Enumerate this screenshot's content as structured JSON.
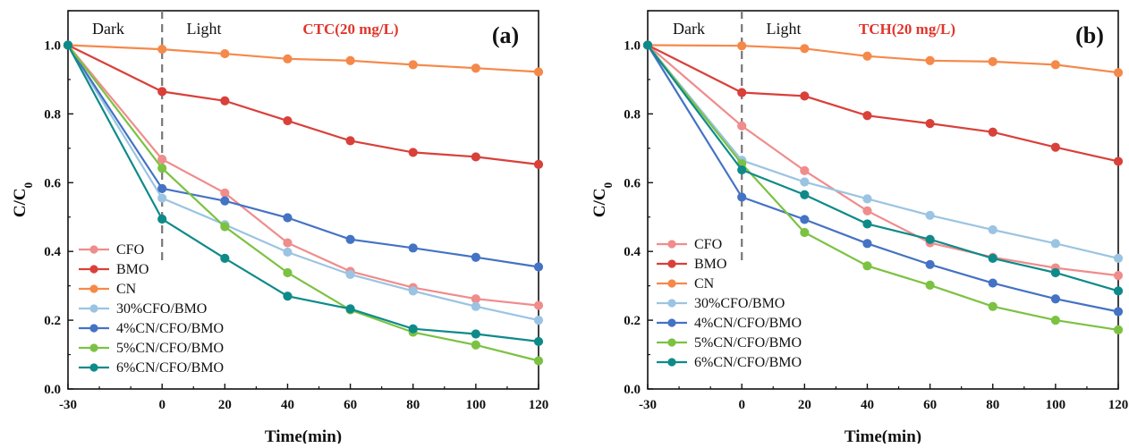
{
  "chart_data": [
    {
      "type": "line",
      "panel_label": "(a)",
      "annotation": "CTC(20 mg/L)",
      "annotation_color": "#e0352b",
      "phase_labels": [
        "Dark",
        "Light"
      ],
      "xlabel": "Time(min)",
      "ylabel": "C/C",
      "ylabel_sub": "0",
      "xlim": [
        -30,
        120
      ],
      "ylim": [
        0.0,
        1.1
      ],
      "x_ticks": [
        "-30",
        "0",
        "20",
        "40",
        "60",
        "80",
        "100",
        "120"
      ],
      "y_ticks": [
        "0.0",
        "0.2",
        "0.4",
        "0.6",
        "0.8",
        "1.0"
      ],
      "legend_position": "bottom-left",
      "x": [
        -30,
        0,
        20,
        40,
        60,
        80,
        100,
        120
      ],
      "series": [
        {
          "name": "CFO",
          "color": "#f08c8c",
          "values": [
            1.0,
            0.668,
            0.57,
            0.425,
            0.342,
            0.295,
            0.262,
            0.243
          ]
        },
        {
          "name": "BMO",
          "color": "#d9403a",
          "values": [
            1.0,
            0.865,
            0.838,
            0.78,
            0.722,
            0.688,
            0.675,
            0.653
          ]
        },
        {
          "name": "CN",
          "color": "#f5894a",
          "values": [
            1.0,
            0.988,
            0.975,
            0.96,
            0.955,
            0.943,
            0.933,
            0.922
          ]
        },
        {
          "name": "30%CFO/BMO",
          "color": "#9bc4e2",
          "values": [
            1.0,
            0.555,
            0.478,
            0.398,
            0.333,
            0.285,
            0.24,
            0.2
          ]
        },
        {
          "name": "4%CN/CFO/BMO",
          "color": "#4472c4",
          "values": [
            1.0,
            0.583,
            0.547,
            0.498,
            0.435,
            0.41,
            0.383,
            0.355
          ]
        },
        {
          "name": "5%CN/CFO/BMO",
          "color": "#7cc242",
          "values": [
            1.0,
            0.642,
            0.472,
            0.338,
            0.23,
            0.165,
            0.128,
            0.082
          ]
        },
        {
          "name": "6%CN/CFO/BMO",
          "color": "#0f8a8a",
          "values": [
            1.0,
            0.494,
            0.38,
            0.27,
            0.233,
            0.175,
            0.16,
            0.138
          ]
        }
      ]
    },
    {
      "type": "line",
      "panel_label": "(b)",
      "annotation": "TCH(20 mg/L)",
      "annotation_color": "#e0352b",
      "phase_labels": [
        "Dark",
        "Light"
      ],
      "xlabel": "Time(min)",
      "ylabel": "C/C",
      "ylabel_sub": "0",
      "xlim": [
        -30,
        120
      ],
      "ylim": [
        0.0,
        1.1
      ],
      "x_ticks": [
        "-30",
        "0",
        "20",
        "40",
        "60",
        "80",
        "100",
        "120"
      ],
      "y_ticks": [
        "0.0",
        "0.2",
        "0.4",
        "0.6",
        "0.8",
        "1.0"
      ],
      "legend_position": "bottom-left",
      "x": [
        -30,
        0,
        20,
        40,
        60,
        80,
        100,
        120
      ],
      "series": [
        {
          "name": "CFO",
          "color": "#f08c8c",
          "values": [
            1.0,
            0.765,
            0.635,
            0.518,
            0.425,
            0.383,
            0.352,
            0.33
          ]
        },
        {
          "name": "BMO",
          "color": "#d9403a",
          "values": [
            1.0,
            0.862,
            0.852,
            0.795,
            0.772,
            0.747,
            0.703,
            0.662
          ]
        },
        {
          "name": "CN",
          "color": "#f5894a",
          "values": [
            1.0,
            0.998,
            0.99,
            0.968,
            0.955,
            0.952,
            0.943,
            0.92
          ]
        },
        {
          "name": "30%CFO/BMO",
          "color": "#9bc4e2",
          "values": [
            1.0,
            0.665,
            0.602,
            0.553,
            0.505,
            0.463,
            0.423,
            0.38
          ]
        },
        {
          "name": "4%CN/CFO/BMO",
          "color": "#4472c4",
          "values": [
            1.0,
            0.558,
            0.493,
            0.423,
            0.362,
            0.308,
            0.262,
            0.225
          ]
        },
        {
          "name": "5%CN/CFO/BMO",
          "color": "#7cc242",
          "values": [
            1.0,
            0.655,
            0.455,
            0.358,
            0.302,
            0.24,
            0.2,
            0.172
          ]
        },
        {
          "name": "6%CN/CFO/BMO",
          "color": "#0f8a8a",
          "values": [
            1.0,
            0.637,
            0.565,
            0.48,
            0.435,
            0.38,
            0.338,
            0.285
          ]
        }
      ]
    }
  ]
}
